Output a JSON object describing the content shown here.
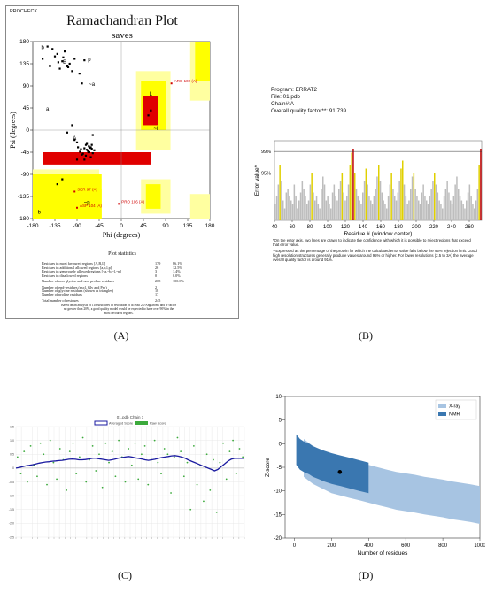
{
  "panels": {
    "A": {
      "caption": "(A)",
      "corner_label": "PROCHECK",
      "title": "Ramachandran Plot",
      "subtitle": "saves",
      "xlabel": "Phi (degrees)",
      "ylabel": "Psi (degrees)",
      "xticks": [
        "-180",
        "-135",
        "-90",
        "-45",
        "0",
        "45",
        "90",
        "135",
        "180"
      ],
      "yticks": [
        "180",
        "135",
        "90",
        "45",
        "0",
        "-45",
        "-90",
        "-135",
        "-180"
      ],
      "region_labels": [
        "A",
        "B",
        "b",
        "a",
        "l",
        "L",
        "p",
        "~b",
        "~a",
        "~l",
        "~p"
      ],
      "residue_labels": [
        {
          "text": "ARG 102 (A)",
          "color": "#d00000"
        },
        {
          "text": "SER 97 (A)",
          "color": "#d00000"
        },
        {
          "text": "PRO 106 (A)",
          "color": "#d00000"
        },
        {
          "text": "ASP 104 (A)",
          "color": "#d00000"
        }
      ],
      "stats_title": "Plot statistics",
      "stats": [
        {
          "label": "Residues in most favoured regions  [A,B,L]",
          "count": "179",
          "pct": "86.1%"
        },
        {
          "label": "Residues in additional allowed regions  [a,b,l,p]",
          "count": "26",
          "pct": "12.5%"
        },
        {
          "label": "Residues in generously allowed regions  [~a,~b,~l,~p]",
          "count": "3",
          "pct": "1.4%"
        },
        {
          "label": "Residues in disallowed regions",
          "count": "0",
          "pct": "0.0%"
        },
        {
          "label": "Number of non-glycine and non-proline residues",
          "count": "208",
          "pct": "100.0%"
        },
        {
          "label": "Number of end-residues (excl. Gly and Pro)",
          "count": "2",
          "pct": ""
        },
        {
          "label": "Number of glycine residues (shown as triangles)",
          "count": "18",
          "pct": ""
        },
        {
          "label": "Number of proline residues",
          "count": "17",
          "pct": ""
        },
        {
          "label": "Total number of residues",
          "count": "245",
          "pct": ""
        }
      ],
      "footnote": "Based on an analysis of 118 structures of resolution of at least 2.0 Angstroms and R-factor no greater than 20%, a good quality model would be expected to have over 90% in the most favoured regions."
    },
    "B": {
      "caption": "(B)",
      "info_lines": [
        "Program: ERRAT2",
        "File: 01.pdb",
        "Chain#:A",
        "Overall quality factor**: 91.739"
      ],
      "ylabel": "Error value*",
      "xlabel": "Residue # (window center)",
      "xticks": [
        "40",
        "60",
        "80",
        "100",
        "120",
        "140",
        "160",
        "180",
        "200",
        "220",
        "240",
        "260"
      ],
      "threshold_labels": [
        "99%",
        "95%"
      ],
      "notes": [
        "*On the error axis, two lines are drawn to indicate the confidence with which it is possible to reject regions that exceed that error value.",
        "**Expressed as the percentage of the protein for which the calculated error value falls below the 95% rejection limit.  Good high resolution structures generally produce values around 95% or higher.  For lower resolutions (2.5 to 3A) the average overall quality factor is around 91%."
      ]
    },
    "C": {
      "caption": "(C)",
      "title": "01.pdb Chain 1",
      "legend": [
        "Averaged Score",
        "Raw Score"
      ],
      "yticks": [
        "1.5",
        "1.0",
        "0.5",
        "0",
        "-0.5",
        "-1.0",
        "-1.5",
        "-2.0",
        "-2.5"
      ]
    },
    "D": {
      "caption": "(D)",
      "legend": [
        "X-ray",
        "NMR"
      ],
      "xlabel": "Number of residues",
      "ylabel": "Z-score",
      "xticks": [
        "0",
        "200",
        "400",
        "600",
        "800",
        "1000"
      ],
      "yticks": [
        "10",
        "5",
        "0",
        "-5",
        "-10",
        "-15",
        "-20"
      ]
    }
  },
  "colors": {
    "core": "#e00000",
    "allowed": "#ffff00",
    "generous": "#ffffa0",
    "disallowed": "#ffffff",
    "errat_gray": "#bdbdbd",
    "errat_yellow": "#e0d000",
    "errat_red": "#c00000",
    "verify_line": "#1a1aa0",
    "verify_dot": "#3caa3c",
    "xray": "#a7c4e2",
    "nmr": "#3a77b0"
  },
  "chart_data": [
    {
      "type": "scatter",
      "title": "Ramachandran Plot",
      "subtitle": "saves",
      "xlabel": "Phi (degrees)",
      "ylabel": "Psi (degrees)",
      "xlim": [
        -180,
        180
      ],
      "ylim": [
        -180,
        180
      ],
      "series": [
        {
          "x": [
            -120,
            -110,
            -130,
            -100,
            -140,
            -95,
            -125,
            -115,
            -105,
            -135,
            -85,
            -150,
            -118,
            -128,
            -108,
            -75,
            -70,
            -88,
            -160,
            -145,
            -65,
            -72,
            -80,
            -60,
            -68,
            -90,
            -62,
            -58,
            -75,
            -84,
            -66,
            -70,
            -95,
            -55,
            -78,
            -64,
            -72,
            -82,
            -67,
            -60,
            -100,
            -110,
            -75,
            -58,
            60,
            55,
            -62,
            -90,
            -130,
            -120,
            -80
          ],
          "y": [
            140,
            130,
            155,
            120,
            165,
            145,
            125,
            160,
            135,
            150,
            115,
            170,
            148,
            138,
            128,
            142,
            -40,
            -35,
            145,
            130,
            -45,
            -30,
            -50,
            -38,
            -42,
            -25,
            -55,
            -47,
            -37,
            -44,
            -33,
            -28,
            -20,
            -41,
            -48,
            -36,
            -52,
            -39,
            -45,
            -30,
            10,
            -5,
            -60,
            -10,
            40,
            30,
            -35,
            -60,
            -110,
            -100,
            95
          ]
        }
      ]
    },
    {
      "type": "bar",
      "title": "",
      "xlabel": "Residue # (window center)",
      "ylabel": "Error value*",
      "xlim": [
        40,
        274
      ],
      "thresholds": [
        {
          "label": "99%",
          "value": 17.3
        },
        {
          "label": "95%",
          "value": 11.9
        }
      ],
      "values": [
        4,
        6,
        9,
        14,
        10,
        5,
        3,
        7,
        8,
        6,
        5,
        4,
        9,
        6,
        3,
        5,
        7,
        10,
        8,
        6,
        4,
        5,
        9,
        12,
        7,
        5,
        6,
        4,
        3,
        8,
        11,
        9,
        5,
        6,
        4,
        3,
        7,
        9,
        6,
        5,
        8,
        10,
        12,
        7,
        5,
        6,
        9,
        14,
        17,
        18,
        12,
        8,
        6,
        5,
        4,
        7,
        10,
        13,
        9,
        6,
        5,
        4,
        6,
        8,
        11,
        14,
        10,
        7,
        5,
        4,
        3,
        6,
        9,
        12,
        8,
        6,
        5,
        7,
        10,
        13,
        15,
        9,
        6,
        4,
        5,
        8,
        11,
        12,
        8,
        6,
        5,
        4,
        7,
        9,
        6,
        5,
        4,
        6,
        8,
        10,
        12,
        9,
        7,
        5,
        4,
        3,
        6,
        8,
        10,
        7,
        5,
        4,
        6,
        9,
        11,
        8,
        6,
        5,
        4,
        3,
        5,
        7,
        9,
        6,
        4,
        3,
        5,
        8,
        14,
        18
      ]
    },
    {
      "type": "line",
      "title": "01.pdb Chain 1",
      "ylim": [
        -2.5,
        1.5
      ],
      "series": [
        {
          "name": "Averaged Score",
          "values": [
            0.0,
            0.02,
            0.05,
            0.08,
            0.1,
            0.12,
            0.15,
            0.18,
            0.2,
            0.22,
            0.23,
            0.25,
            0.26,
            0.27,
            0.28,
            0.3,
            0.32,
            0.33,
            0.32,
            0.3,
            0.3,
            0.31,
            0.33,
            0.35,
            0.36,
            0.34,
            0.32,
            0.3,
            0.28,
            0.3,
            0.33,
            0.36,
            0.38,
            0.4,
            0.42,
            0.4,
            0.37,
            0.35,
            0.33,
            0.3,
            0.28,
            0.3,
            0.32,
            0.35,
            0.38,
            0.4,
            0.42,
            0.44,
            0.45,
            0.43,
            0.4,
            0.36,
            0.3,
            0.25,
            0.2,
            0.15,
            0.1,
            0.05,
            0.0,
            -0.05,
            -0.1,
            -0.05,
            0.05,
            0.15,
            0.25,
            0.32,
            0.35,
            0.35,
            0.35,
            0.35
          ]
        },
        {
          "name": "Raw Score",
          "values": [
            0.4,
            -0.2,
            0.6,
            -0.5,
            0.8,
            0.1,
            -0.3,
            0.9,
            0.5,
            -0.6,
            1.0,
            0.2,
            -0.4,
            0.7,
            0.3,
            -0.8,
            0.6,
            0.9,
            -0.2,
            0.4,
            1.1,
            -0.5,
            0.3,
            0.8,
            -0.1,
            0.5,
            -0.7,
            0.9,
            0.2,
            0.6,
            -0.3,
            1.0,
            0.4,
            -0.5,
            0.7,
            0.1,
            0.9,
            -0.4,
            0.5,
            0.8,
            -0.6,
            0.3,
            1.0,
            0.2,
            -0.2,
            0.7,
            0.5,
            -0.9,
            0.4,
            1.1,
            0.6,
            -0.3,
            0.2,
            -1.5,
            0.8,
            -0.6,
            0.1,
            -1.2,
            0.5,
            -0.8,
            0.3,
            -1.6,
            0.2,
            0.9,
            -0.4,
            0.6,
            1.0,
            -0.2,
            0.7,
            0.4
          ]
        }
      ]
    },
    {
      "type": "scatter",
      "title": "",
      "xlabel": "Number of residues",
      "ylabel": "Z-score",
      "xlim": [
        -50,
        1000
      ],
      "ylim": [
        -20,
        10
      ],
      "series": [
        {
          "name": "X-ray",
          "x": [
            50,
            100,
            150,
            200,
            250,
            300,
            350,
            400,
            450,
            500,
            550,
            600,
            650,
            700,
            750,
            800,
            850,
            900,
            950,
            1000
          ],
          "y": [
            -3,
            -4.5,
            -5.5,
            -6.5,
            -7,
            -7.5,
            -8,
            -8.5,
            -9,
            -9.5,
            -10,
            -10.3,
            -10.6,
            -11,
            -11.3,
            -11.6,
            -12,
            -12.3,
            -12.6,
            -13
          ]
        },
        {
          "name": "NMR",
          "x": [
            10,
            30,
            50,
            80,
            100,
            130,
            160,
            200,
            250,
            300,
            350,
            400
          ],
          "y": [
            -1,
            -2,
            -2.5,
            -3,
            -3.5,
            -4,
            -4.5,
            -5,
            -5.5,
            -6,
            -6.5,
            -7
          ]
        },
        {
          "name": "",
          "x": [
            245
          ],
          "y": [
            -6
          ]
        }
      ]
    }
  ]
}
